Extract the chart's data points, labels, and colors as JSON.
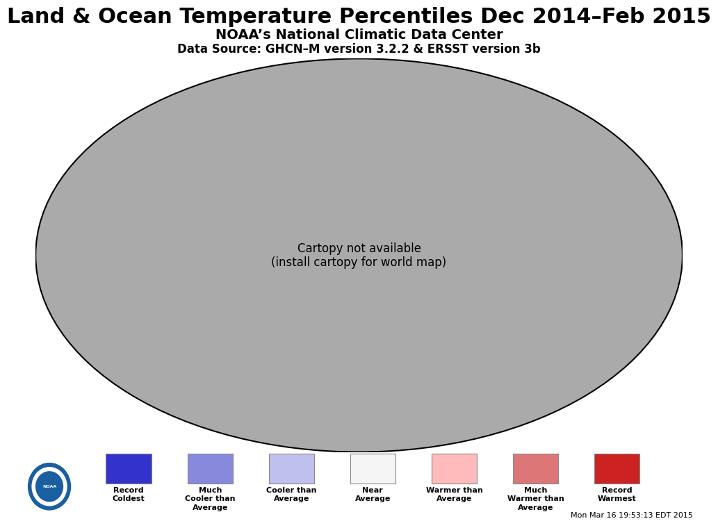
{
  "title": "Land & Ocean Temperature Percentiles Dec 2014–Feb 2015",
  "subtitle": "NOAA’s National Climatic Data Center",
  "datasource": "Data Source: GHCN–M version 3.2.2 & ERSST version 3b",
  "timestamp": "Mon Mar 16 19:53:13 EDT 2015",
  "background_color": "#ffffff",
  "gray_bg": "#aaaaaa",
  "legend_colors": [
    "#3333cc",
    "#8888dd",
    "#c0c0ee",
    "#f5f5f5",
    "#ffbbbb",
    "#dd7777",
    "#cc2222"
  ],
  "legend_labels": [
    "Record\nColdest",
    "Much\nCooler than\nAverage",
    "Cooler than\nAverage",
    "Near\nAverage",
    "Warmer than\nAverage",
    "Much\nWarmer than\nAverage",
    "Record\nWarmest"
  ],
  "title_fontsize": 22,
  "subtitle_fontsize": 14,
  "source_fontsize": 12,
  "timestamp_fontsize": 8,
  "cat_colors": {
    "0": [
      0.2,
      0.2,
      0.8
    ],
    "1": [
      0.53,
      0.53,
      0.87
    ],
    "2": [
      0.75,
      0.75,
      0.93
    ],
    "3": [
      0.96,
      0.96,
      0.96
    ],
    "4": [
      1.0,
      0.73,
      0.73
    ],
    "5": [
      0.87,
      0.47,
      0.47
    ],
    "6": [
      0.8,
      0.13,
      0.13
    ],
    "-1": [
      0.67,
      0.67,
      0.67
    ]
  }
}
